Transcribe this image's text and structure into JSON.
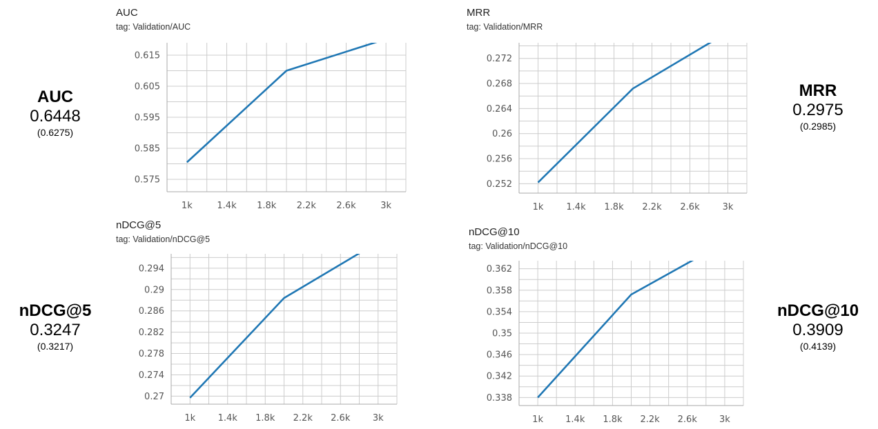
{
  "theme": {
    "line_color": "#1f77b4",
    "grid_color": "#cccccc",
    "axis_color": "#aaaaaa"
  },
  "summaries": [
    {
      "id": "auc",
      "name": "AUC",
      "value": "0.6448",
      "sub": "(0.6275)"
    },
    {
      "id": "mrr",
      "name": "MRR",
      "value": "0.2975",
      "sub": "(0.2985)"
    },
    {
      "id": "ndcg5",
      "name": "nDCG@5",
      "value": "0.3247",
      "sub": "(0.3217)"
    },
    {
      "id": "ndcg10",
      "name": "nDCG@10",
      "value": "0.3909",
      "sub": "(0.4139)"
    }
  ],
  "chart_data": [
    {
      "type": "line",
      "title": "AUC",
      "tag": "tag: Validation/AUC",
      "xlim": [
        800,
        3200
      ],
      "ylim": [
        0.571,
        0.619
      ],
      "xticks": [
        1000,
        1400,
        1800,
        2200,
        2600,
        3000
      ],
      "xtick_labels": [
        "1k",
        "1.4k",
        "1.8k",
        "2.2k",
        "2.6k",
        "3k"
      ],
      "yticks": [
        0.575,
        0.585,
        0.595,
        0.605,
        0.615
      ],
      "ytick_labels": [
        "0.575",
        "0.585",
        "0.595",
        "0.605",
        "0.615"
      ],
      "grid": true,
      "series": [
        {
          "x": [
            1000,
            2000,
            3000
          ],
          "y": [
            0.5805,
            0.61,
            0.6202
          ]
        }
      ]
    },
    {
      "type": "line",
      "title": "MRR",
      "tag": "tag: Validation/MRR",
      "xlim": [
        800,
        3200
      ],
      "ylim": [
        0.2505,
        0.2745
      ],
      "xticks": [
        1000,
        1400,
        1800,
        2200,
        2600,
        3000
      ],
      "xtick_labels": [
        "1k",
        "1.4k",
        "1.8k",
        "2.2k",
        "2.6k",
        "3k"
      ],
      "yticks": [
        0.252,
        0.256,
        0.26,
        0.264,
        0.268,
        0.272
      ],
      "ytick_labels": [
        "0.252",
        "0.256",
        "0.26",
        "0.264",
        "0.268",
        "0.272"
      ],
      "grid": true,
      "series": [
        {
          "x": [
            1000,
            2000,
            3000
          ],
          "y": [
            0.2522,
            0.2672,
            0.2762
          ]
        }
      ]
    },
    {
      "type": "line",
      "title": "nDCG@5",
      "tag": "tag: Validation/nDCG@5",
      "xlim": [
        800,
        3200
      ],
      "ylim": [
        0.2685,
        0.2967
      ],
      "xticks": [
        1000,
        1400,
        1800,
        2200,
        2600,
        3000
      ],
      "xtick_labels": [
        "1k",
        "1.4k",
        "1.8k",
        "2.2k",
        "2.6k",
        "3k"
      ],
      "yticks": [
        0.27,
        0.274,
        0.278,
        0.282,
        0.286,
        0.29,
        0.294
      ],
      "ytick_labels": [
        "0.27",
        "0.274",
        "0.278",
        "0.282",
        "0.286",
        "0.29",
        "0.294"
      ],
      "grid": true,
      "series": [
        {
          "x": [
            1000,
            2000,
            3000
          ],
          "y": [
            0.2697,
            0.2884,
            0.2989
          ]
        }
      ]
    },
    {
      "type": "line",
      "title": "nDCG@10",
      "tag": "tag: Validation/nDCG@10",
      "xlim": [
        800,
        3200
      ],
      "ylim": [
        0.3365,
        0.3635
      ],
      "xticks": [
        1000,
        1400,
        1800,
        2200,
        2600,
        3000
      ],
      "xtick_labels": [
        "1k",
        "1.4k",
        "1.8k",
        "2.2k",
        "2.6k",
        "3k"
      ],
      "yticks": [
        0.338,
        0.342,
        0.346,
        0.35,
        0.354,
        0.358,
        0.362
      ],
      "ytick_labels": [
        "0.338",
        "0.342",
        "0.346",
        "0.35",
        "0.354",
        "0.358",
        "0.362"
      ],
      "grid": true,
      "series": [
        {
          "x": [
            1000,
            2000,
            3000
          ],
          "y": [
            0.338,
            0.3572,
            0.3669
          ]
        }
      ]
    }
  ]
}
